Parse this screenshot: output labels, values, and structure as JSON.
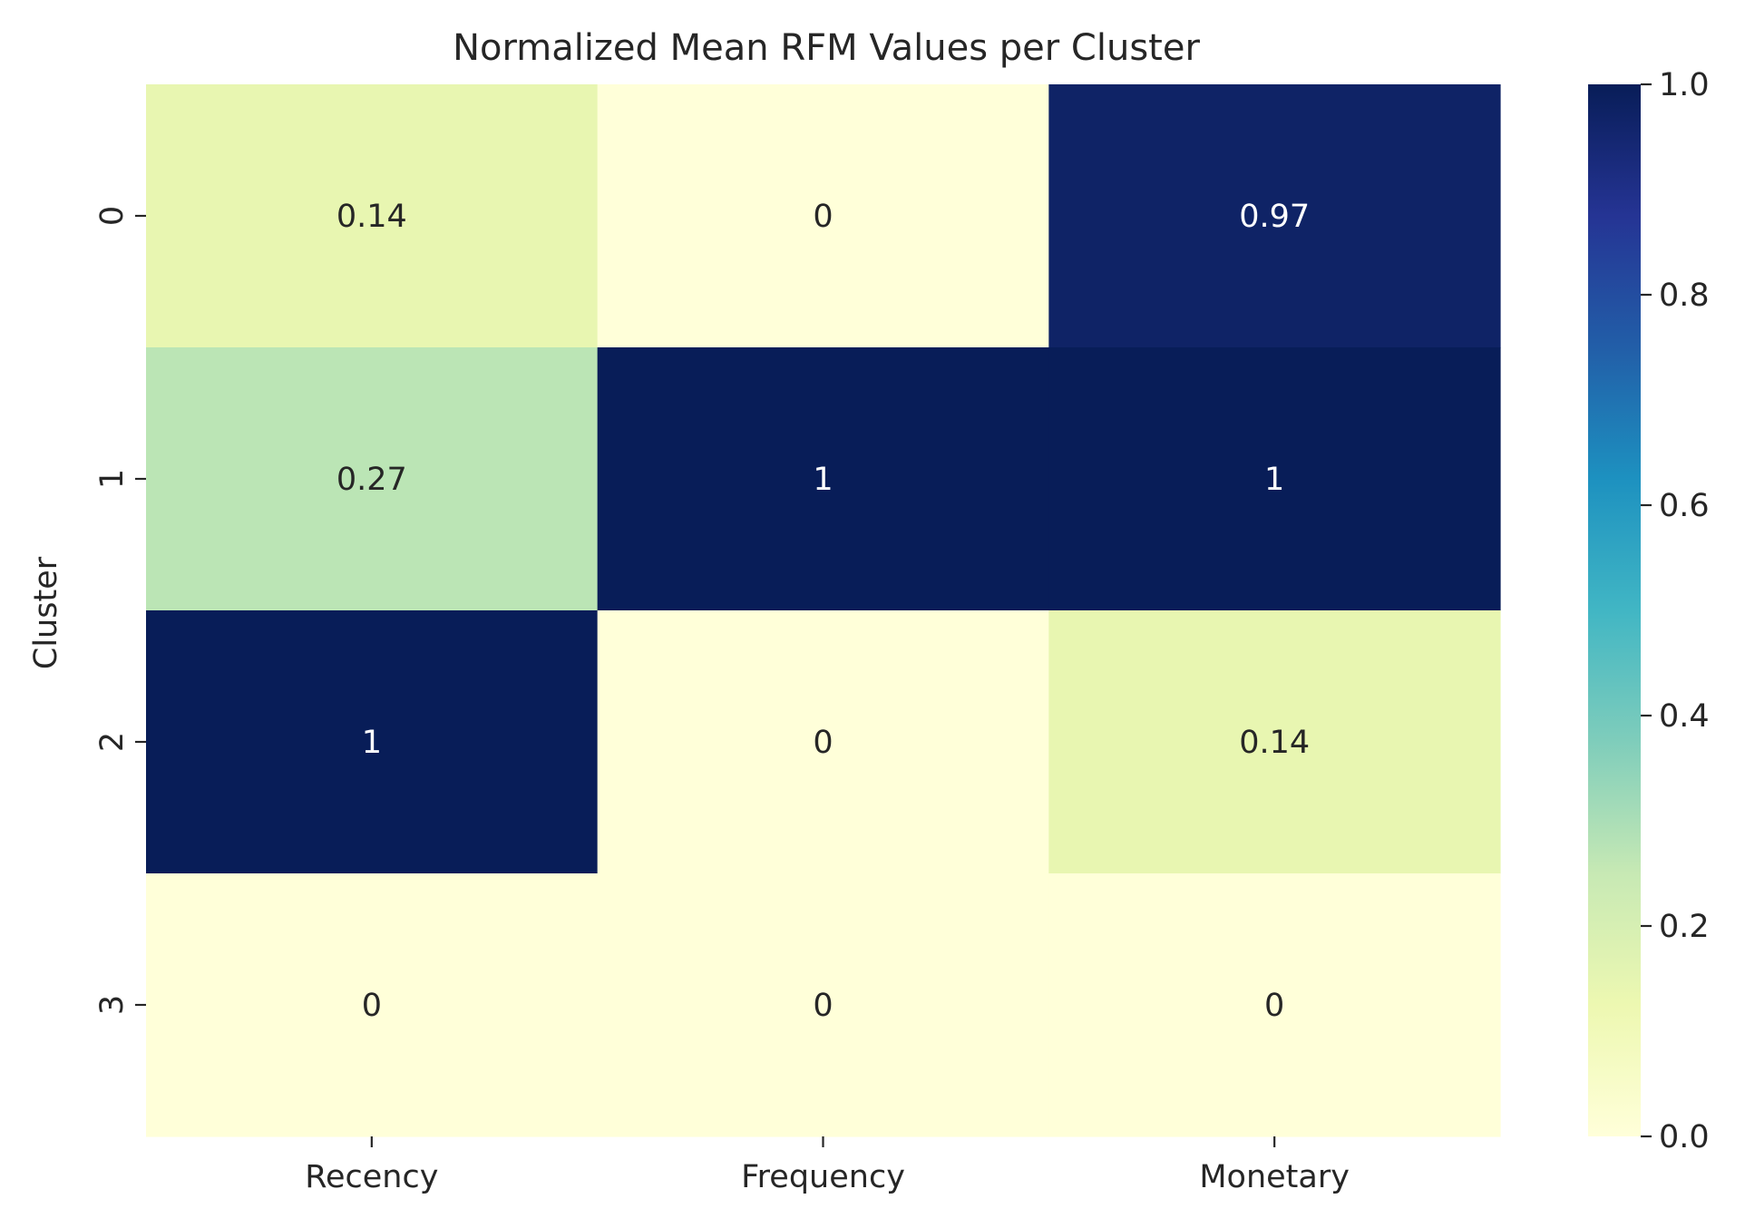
{
  "chart_data": {
    "type": "heatmap",
    "title": "Normalized Mean RFM Values per Cluster",
    "xlabel": "",
    "ylabel": "Cluster",
    "columns": [
      "Recency",
      "Frequency",
      "Monetary"
    ],
    "rows": [
      "0",
      "1",
      "2",
      "3"
    ],
    "values": [
      [
        0.14,
        0,
        0.97
      ],
      [
        0.27,
        1,
        1
      ],
      [
        1,
        0,
        0.14
      ],
      [
        0,
        0,
        0
      ]
    ],
    "annotations": [
      [
        "0.14",
        "0",
        "0.97"
      ],
      [
        "0.27",
        "1",
        "1"
      ],
      [
        "1",
        "0",
        "0.14"
      ],
      [
        "0",
        "0",
        "0"
      ]
    ],
    "colorbar": {
      "range": [
        0,
        1
      ],
      "ticks": [
        "0.0",
        "0.2",
        "0.4",
        "0.6",
        "0.8",
        "1.0"
      ],
      "colormap": "YlGnBu",
      "colors": [
        "#ffffd9",
        "#edf8b1",
        "#c7e9b4",
        "#7fcdbb",
        "#41b6c4",
        "#1d91c0",
        "#225ea8",
        "#253494",
        "#081d58"
      ]
    },
    "grid": false,
    "legend": "colorbar-right"
  }
}
